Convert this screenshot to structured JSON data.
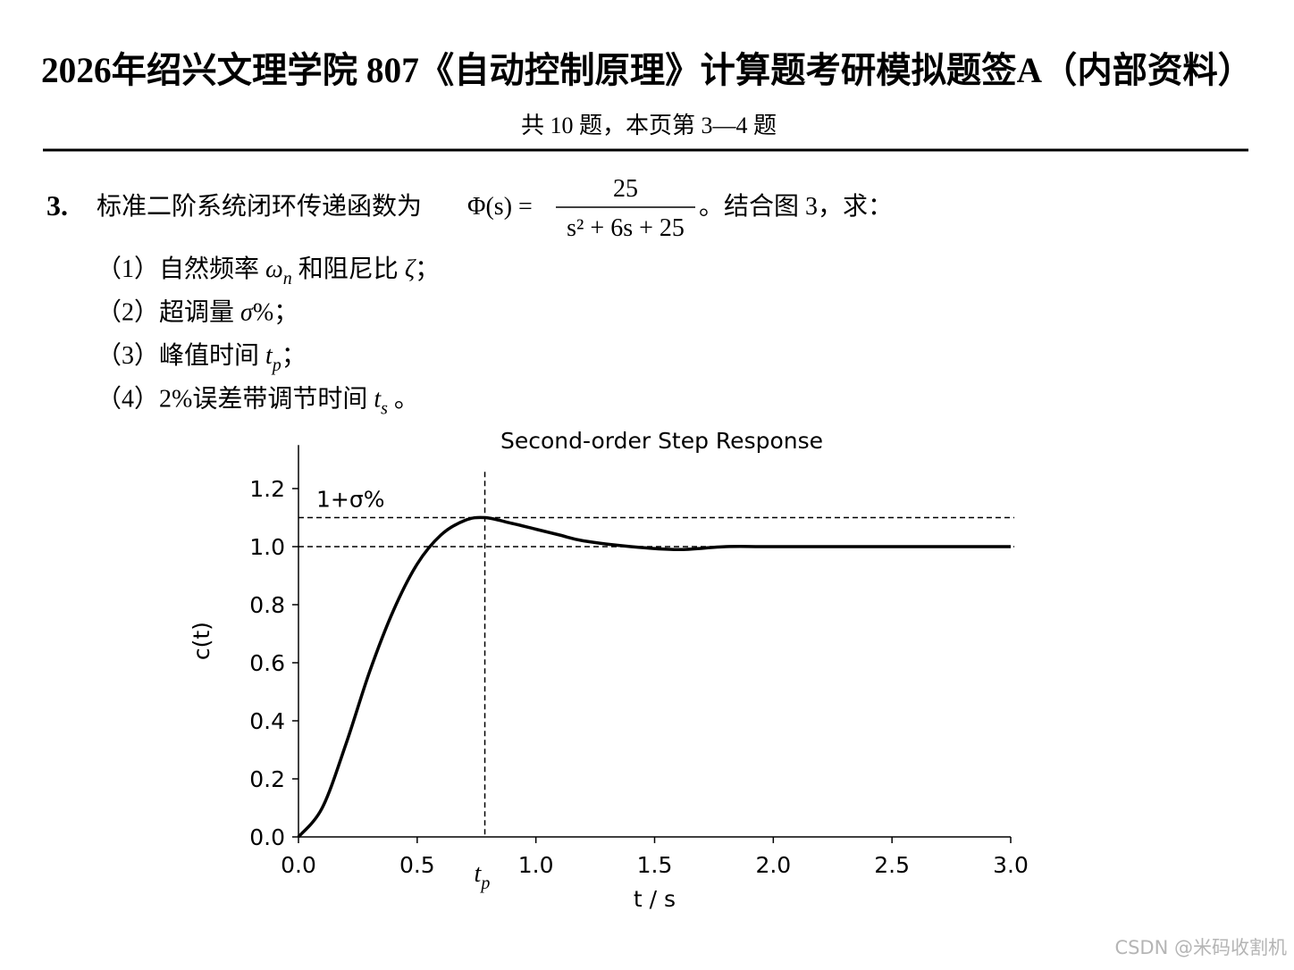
{
  "header": {
    "title": "2026年绍兴文理学院 807《自动控制原理》计算题考研模拟题签A（内部资料）",
    "subtitle": "共 10 题，本页第 3—4 题"
  },
  "question": {
    "number": "3.",
    "lead": "标准二阶系统闭环传递函数为",
    "formula": {
      "lhs": "Φ(s) =",
      "numerator": "25",
      "denominator": "s² + 6s + 25"
    },
    "tail": "。结合图 3，求：",
    "items": [
      [
        {
          "text": "（1）自然频率 "
        },
        {
          "text": "ω",
          "style": "math"
        },
        {
          "text": "n",
          "style": "sub"
        },
        {
          "text": " 和阻尼比 "
        },
        {
          "text": "ζ",
          "style": "math"
        },
        {
          "text": "；"
        }
      ],
      [
        {
          "text": "（2）超调量 "
        },
        {
          "text": "σ",
          "style": "math"
        },
        {
          "text": "%；"
        }
      ],
      [
        {
          "text": "（3）峰值时间 "
        },
        {
          "text": "t",
          "style": "math"
        },
        {
          "text": "p",
          "style": "sub"
        },
        {
          "text": "；"
        }
      ],
      [
        {
          "text": "（4）2%误差带调节时间 "
        },
        {
          "text": "t",
          "style": "math"
        },
        {
          "text": "s",
          "style": "sub"
        },
        {
          "text": " 。"
        }
      ]
    ]
  },
  "chart_data": {
    "type": "line",
    "title": "Second-order Step Response",
    "xlabel": "t / s",
    "ylabel": "c(t)",
    "color": "#000000",
    "x": [
      0,
      0.1,
      0.2,
      0.3,
      0.4,
      0.5,
      0.6,
      0.7,
      0.785,
      0.9,
      1.0,
      1.1,
      1.2,
      1.4,
      1.6,
      1.8,
      2.0,
      2.5,
      3.0
    ],
    "values": [
      0,
      0.1,
      0.32,
      0.57,
      0.78,
      0.94,
      1.04,
      1.09,
      1.1,
      1.08,
      1.06,
      1.04,
      1.02,
      1.0,
      0.99,
      1.0,
      1.0,
      1.0,
      1.0
    ],
    "xlim": [
      0,
      3
    ],
    "ylim": [
      0,
      1.35
    ],
    "xticks": [
      {
        "value": 0,
        "label": "0.0"
      },
      0.5,
      {
        "value": 1,
        "label": "1.0"
      },
      1.5,
      {
        "value": 2,
        "label": "2.0"
      },
      2.5,
      {
        "value": 3,
        "label": "3.0"
      }
    ],
    "yticks": [
      {
        "value": 0,
        "label": "0.0"
      },
      0.2,
      0.4,
      0.6,
      0.8,
      {
        "value": 1,
        "label": "1.0"
      },
      1.2
    ],
    "hlines": [
      1,
      1.1
    ],
    "vline": 0.785,
    "overshoot_label": "1+σ%",
    "tp_label": {
      "text": "t",
      "sub": "p"
    }
  },
  "watermark": "CSDN @米码收割机"
}
